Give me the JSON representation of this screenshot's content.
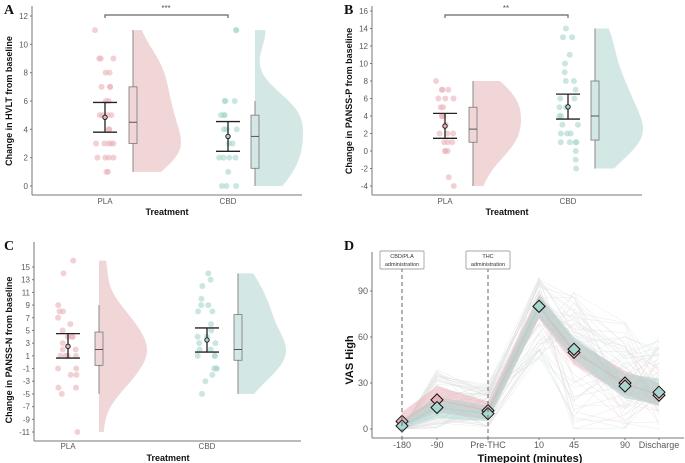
{
  "colors": {
    "PLA": "#e9b3b9",
    "CBD": "#a9d6cf",
    "PLA_fill": "#f1d6d8",
    "CBD_fill": "#d3e7e4"
  },
  "chart_data": [
    {
      "panel": "A",
      "type": "raincloud",
      "ylabel": "Change in HVLT from baseline",
      "xlabel": "Treatment",
      "categories": [
        "PLA",
        "CBD"
      ],
      "ylim": [
        0,
        12
      ],
      "yticks": [
        0,
        2,
        4,
        6,
        8,
        10,
        12
      ],
      "significance": "***",
      "grid": false,
      "groups": [
        {
          "name": "PLA",
          "points": [
            11,
            9,
            9,
            9,
            8,
            8,
            7,
            7,
            7,
            6,
            6,
            5,
            5,
            5,
            5,
            4,
            4,
            3,
            3,
            3,
            3,
            3,
            2,
            2,
            2,
            2,
            1,
            1
          ],
          "mean": 4.85,
          "ci": [
            3.8,
            5.9
          ],
          "box": {
            "min": 1,
            "q1": 3,
            "median": 4.5,
            "q3": 7,
            "max": 11
          }
        },
        {
          "name": "CBD",
          "points": [
            11,
            11,
            6,
            6,
            6,
            5,
            5,
            5,
            4,
            4,
            4,
            3,
            3,
            2,
            2,
            2,
            2,
            1,
            0,
            0,
            0
          ],
          "mean": 3.5,
          "ci": [
            2.45,
            4.55
          ],
          "box": {
            "min": 0,
            "q1": 1.25,
            "median": 3.5,
            "q3": 5,
            "max": 6
          }
        }
      ]
    },
    {
      "panel": "B",
      "type": "raincloud",
      "ylabel": "Change in PANSS-P from baseline",
      "xlabel": "Treatment",
      "categories": [
        "PLA",
        "CBD"
      ],
      "ylim": [
        -4,
        16
      ],
      "yticks": [
        -4,
        -2,
        0,
        2,
        4,
        6,
        8,
        10,
        12,
        14,
        16
      ],
      "significance": "**",
      "grid": false,
      "groups": [
        {
          "name": "PLA",
          "points": [
            8,
            7,
            7,
            7,
            6,
            6,
            6,
            5,
            5,
            4,
            4,
            4,
            3,
            2,
            2,
            2,
            1,
            1,
            1,
            0,
            0,
            0,
            -3,
            -4
          ],
          "mean": 2.85,
          "ci": [
            1.45,
            4.3
          ],
          "box": {
            "min": -4,
            "q1": 1,
            "median": 2.5,
            "q3": 5,
            "max": 8
          }
        },
        {
          "name": "CBD",
          "points": [
            14,
            13,
            13,
            11,
            10,
            9,
            8,
            8,
            7,
            6,
            6,
            5,
            5,
            4,
            4,
            3,
            3,
            2,
            2,
            2,
            1,
            1,
            1,
            1,
            0,
            -1,
            -2
          ],
          "mean": 5.05,
          "ci": [
            3.65,
            6.5
          ],
          "box": {
            "min": -2,
            "q1": 1.25,
            "median": 4,
            "q3": 8,
            "max": 14
          }
        }
      ]
    },
    {
      "panel": "C",
      "type": "raincloud",
      "ylabel": "Change in PANSS-N from baseline",
      "xlabel": "Treatment",
      "categories": [
        "PLA",
        "CBD"
      ],
      "ylim": [
        -11,
        15
      ],
      "yticks": [
        -11,
        -9,
        -7,
        -5,
        -3,
        -1,
        1,
        3,
        5,
        7,
        9,
        11,
        13,
        15
      ],
      "significance": "",
      "grid": false,
      "groups": [
        {
          "name": "PLA",
          "points": [
            16,
            14,
            9,
            8,
            8,
            7,
            6,
            5,
            4,
            4,
            4,
            3,
            2,
            2,
            1,
            1,
            1,
            1,
            -1,
            -1,
            -2,
            -2,
            -4,
            -4,
            -5,
            -11
          ],
          "mean": 2.5,
          "ci": [
            0.65,
            4.5
          ],
          "box": {
            "min": -5,
            "q1": -0.5,
            "median": 2,
            "q3": 4.75,
            "max": 9
          }
        },
        {
          "name": "CBD",
          "points": [
            14,
            13,
            12,
            10,
            9,
            9,
            8,
            8,
            6,
            5,
            4,
            4,
            3,
            3,
            2,
            2,
            1,
            1,
            1,
            -1,
            -1,
            -1,
            -2,
            -3,
            -5
          ],
          "mean": 3.5,
          "ci": [
            1.6,
            5.4
          ],
          "box": {
            "min": -5,
            "q1": 0.3,
            "median": 2,
            "q3": 7.5,
            "max": 14
          }
        }
      ]
    },
    {
      "panel": "D",
      "type": "line",
      "ylabel": "VAS High",
      "xlabel": "Timepoint (minutes)",
      "categories": [
        "-180",
        "-90",
        "Pre-THC",
        "10",
        "45",
        "90",
        "Discharge"
      ],
      "ylim": [
        0,
        100
      ],
      "yticks": [
        0,
        30,
        60,
        90
      ],
      "grid": false,
      "annotations": [
        {
          "at": "-180",
          "label": [
            "CBD/PLA",
            "administration"
          ]
        },
        {
          "at": "Pre-THC",
          "label": [
            "THC",
            "administration"
          ]
        }
      ],
      "series": [
        {
          "name": "PLA",
          "mean": [
            5,
            19,
            12,
            80,
            50,
            30,
            22
          ],
          "lower": [
            1,
            11,
            6,
            72,
            42,
            22,
            15
          ],
          "upper": [
            11,
            28,
            18,
            88,
            58,
            38,
            30
          ]
        },
        {
          "name": "CBD",
          "mean": [
            2,
            14,
            10,
            80,
            52,
            28,
            24
          ],
          "lower": [
            0,
            7,
            5,
            73,
            45,
            20,
            16
          ],
          "upper": [
            6,
            21,
            15,
            87,
            60,
            36,
            33
          ]
        }
      ]
    }
  ]
}
